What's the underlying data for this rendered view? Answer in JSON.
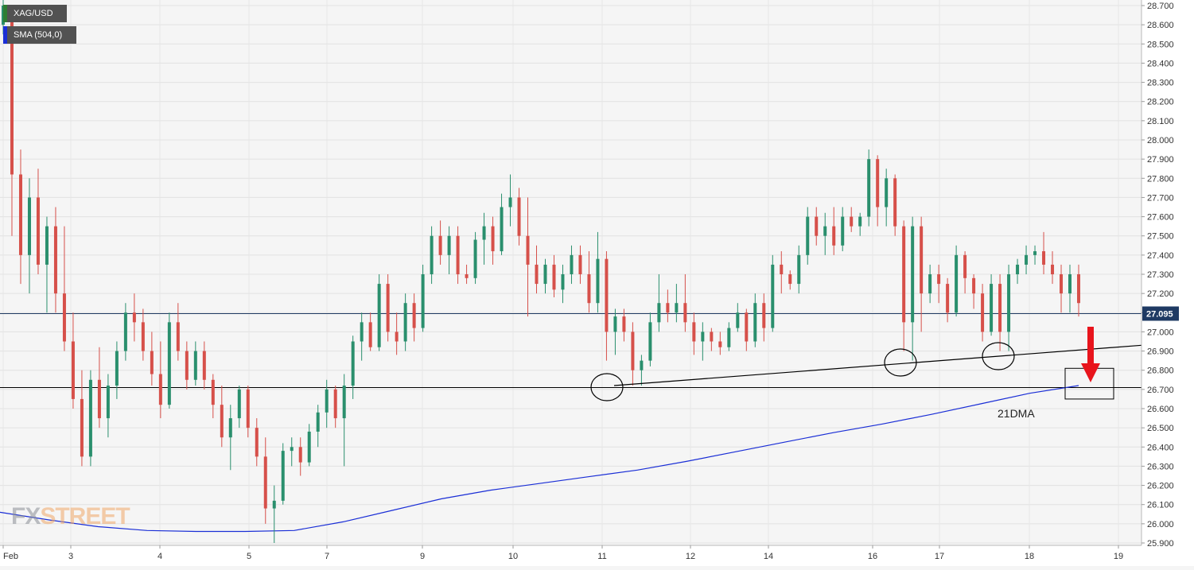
{
  "legend": {
    "symbol": "XAG/USD",
    "indicator": "SMA (504,0)",
    "symbol_color": "#2e7d32",
    "indicator_color": "#1a2ed6"
  },
  "watermark": {
    "fx": "FX",
    "street": "STREET"
  },
  "colors": {
    "up": "#2a8f6d",
    "down": "#d6504a",
    "sma": "#1a2ed6",
    "price_line": "#1f3a63",
    "annotation": "#000000",
    "arrow": "#e8141c"
  },
  "chart_data": {
    "type": "candlestick",
    "instrument": "XAG/USD",
    "y_range": [
      25.88,
      28.71
    ],
    "y_ticks": [
      "28.700",
      "28.600",
      "28.500",
      "28.400",
      "28.300",
      "28.200",
      "28.100",
      "28.000",
      "27.900",
      "27.800",
      "27.700",
      "27.600",
      "27.500",
      "27.400",
      "27.300",
      "27.200",
      "27.100",
      "27.000",
      "26.900",
      "26.800",
      "26.700",
      "26.600",
      "26.500",
      "26.400",
      "26.300",
      "26.200",
      "26.100",
      "26.000",
      "25.900"
    ],
    "x_labels": [
      "Feb",
      "3",
      "4",
      "5",
      "7",
      "9",
      "10",
      "11",
      "12",
      "14",
      "16",
      "17",
      "18",
      "19"
    ],
    "current_price": "27.095",
    "candles": [
      {
        "o": 28.6,
        "h": 28.74,
        "l": 28.55,
        "c": 28.7
      },
      {
        "o": 28.62,
        "h": 28.66,
        "l": 27.5,
        "c": 27.82
      },
      {
        "o": 27.82,
        "h": 27.95,
        "l": 27.25,
        "c": 27.4
      },
      {
        "o": 27.4,
        "h": 27.8,
        "l": 27.2,
        "c": 27.7
      },
      {
        "o": 27.7,
        "h": 27.85,
        "l": 27.3,
        "c": 27.35
      },
      {
        "o": 27.35,
        "h": 27.6,
        "l": 27.1,
        "c": 27.55
      },
      {
        "o": 27.55,
        "h": 27.65,
        "l": 27.1,
        "c": 27.2
      },
      {
        "o": 27.2,
        "h": 27.55,
        "l": 26.9,
        "c": 26.95
      },
      {
        "o": 26.95,
        "h": 27.1,
        "l": 26.6,
        "c": 26.65
      },
      {
        "o": 26.65,
        "h": 26.8,
        "l": 26.3,
        "c": 26.35
      },
      {
        "o": 26.35,
        "h": 26.8,
        "l": 26.3,
        "c": 26.75
      },
      {
        "o": 26.75,
        "h": 26.92,
        "l": 26.5,
        "c": 26.55
      },
      {
        "o": 26.55,
        "h": 26.78,
        "l": 26.45,
        "c": 26.72
      },
      {
        "o": 26.72,
        "h": 26.95,
        "l": 26.65,
        "c": 26.9
      },
      {
        "o": 26.9,
        "h": 27.15,
        "l": 26.85,
        "c": 27.1
      },
      {
        "o": 27.1,
        "h": 27.2,
        "l": 26.95,
        "c": 27.05
      },
      {
        "o": 27.05,
        "h": 27.12,
        "l": 26.85,
        "c": 26.9
      },
      {
        "o": 26.9,
        "h": 27.0,
        "l": 26.72,
        "c": 26.78
      },
      {
        "o": 26.78,
        "h": 26.95,
        "l": 26.55,
        "c": 26.62
      },
      {
        "o": 26.62,
        "h": 27.1,
        "l": 26.6,
        "c": 27.05
      },
      {
        "o": 27.05,
        "h": 27.15,
        "l": 26.85,
        "c": 26.9
      },
      {
        "o": 26.9,
        "h": 26.95,
        "l": 26.7,
        "c": 26.75
      },
      {
        "o": 26.75,
        "h": 26.95,
        "l": 26.72,
        "c": 26.9
      },
      {
        "o": 26.9,
        "h": 26.95,
        "l": 26.7,
        "c": 26.75
      },
      {
        "o": 26.75,
        "h": 26.78,
        "l": 26.55,
        "c": 26.62
      },
      {
        "o": 26.62,
        "h": 26.72,
        "l": 26.4,
        "c": 26.45
      },
      {
        "o": 26.45,
        "h": 26.62,
        "l": 26.28,
        "c": 26.55
      },
      {
        "o": 26.55,
        "h": 26.72,
        "l": 26.5,
        "c": 26.7
      },
      {
        "o": 26.7,
        "h": 26.72,
        "l": 26.45,
        "c": 26.5
      },
      {
        "o": 26.5,
        "h": 26.55,
        "l": 26.3,
        "c": 26.35
      },
      {
        "o": 26.35,
        "h": 26.45,
        "l": 26.0,
        "c": 26.08
      },
      {
        "o": 26.08,
        "h": 26.2,
        "l": 25.9,
        "c": 26.12
      },
      {
        "o": 26.12,
        "h": 26.42,
        "l": 26.1,
        "c": 26.38
      },
      {
        "o": 26.38,
        "h": 26.45,
        "l": 26.3,
        "c": 26.4
      },
      {
        "o": 26.4,
        "h": 26.45,
        "l": 26.25,
        "c": 26.32
      },
      {
        "o": 26.32,
        "h": 26.52,
        "l": 26.3,
        "c": 26.48
      },
      {
        "o": 26.48,
        "h": 26.62,
        "l": 26.4,
        "c": 26.58
      },
      {
        "o": 26.58,
        "h": 26.75,
        "l": 26.5,
        "c": 26.7
      },
      {
        "o": 26.7,
        "h": 26.72,
        "l": 26.5,
        "c": 26.55
      },
      {
        "o": 26.55,
        "h": 26.78,
        "l": 26.3,
        "c": 26.72
      },
      {
        "o": 26.72,
        "h": 26.98,
        "l": 26.65,
        "c": 26.95
      },
      {
        "o": 26.95,
        "h": 27.1,
        "l": 26.85,
        "c": 27.05
      },
      {
        "o": 27.05,
        "h": 27.1,
        "l": 26.9,
        "c": 26.92
      },
      {
        "o": 26.92,
        "h": 27.3,
        "l": 26.9,
        "c": 27.25
      },
      {
        "o": 27.25,
        "h": 27.3,
        "l": 26.95,
        "c": 27.0
      },
      {
        "o": 27.0,
        "h": 27.1,
        "l": 26.88,
        "c": 26.95
      },
      {
        "o": 26.95,
        "h": 27.2,
        "l": 26.9,
        "c": 27.15
      },
      {
        "o": 27.15,
        "h": 27.2,
        "l": 26.95,
        "c": 27.02
      },
      {
        "o": 27.02,
        "h": 27.35,
        "l": 27.0,
        "c": 27.3
      },
      {
        "o": 27.3,
        "h": 27.55,
        "l": 27.25,
        "c": 27.5
      },
      {
        "o": 27.5,
        "h": 27.58,
        "l": 27.35,
        "c": 27.4
      },
      {
        "o": 27.4,
        "h": 27.55,
        "l": 27.3,
        "c": 27.5
      },
      {
        "o": 27.5,
        "h": 27.55,
        "l": 27.25,
        "c": 27.3
      },
      {
        "o": 27.3,
        "h": 27.35,
        "l": 27.25,
        "c": 27.28
      },
      {
        "o": 27.28,
        "h": 27.52,
        "l": 27.25,
        "c": 27.48
      },
      {
        "o": 27.48,
        "h": 27.62,
        "l": 27.35,
        "c": 27.55
      },
      {
        "o": 27.55,
        "h": 27.6,
        "l": 27.35,
        "c": 27.42
      },
      {
        "o": 27.42,
        "h": 27.72,
        "l": 27.4,
        "c": 27.65
      },
      {
        "o": 27.65,
        "h": 27.82,
        "l": 27.55,
        "c": 27.7
      },
      {
        "o": 27.7,
        "h": 27.75,
        "l": 27.45,
        "c": 27.5
      },
      {
        "o": 27.5,
        "h": 27.7,
        "l": 27.08,
        "c": 27.35
      },
      {
        "o": 27.35,
        "h": 27.45,
        "l": 27.2,
        "c": 27.25
      },
      {
        "o": 27.25,
        "h": 27.38,
        "l": 27.2,
        "c": 27.35
      },
      {
        "o": 27.35,
        "h": 27.4,
        "l": 27.18,
        "c": 27.22
      },
      {
        "o": 27.22,
        "h": 27.35,
        "l": 27.15,
        "c": 27.3
      },
      {
        "o": 27.3,
        "h": 27.45,
        "l": 27.25,
        "c": 27.4
      },
      {
        "o": 27.4,
        "h": 27.45,
        "l": 27.25,
        "c": 27.3
      },
      {
        "o": 27.3,
        "h": 27.42,
        "l": 27.1,
        "c": 27.15
      },
      {
        "o": 27.15,
        "h": 27.52,
        "l": 27.1,
        "c": 27.38
      },
      {
        "o": 27.38,
        "h": 27.42,
        "l": 26.85,
        "c": 27.0
      },
      {
        "o": 27.0,
        "h": 27.12,
        "l": 26.88,
        "c": 27.08
      },
      {
        "o": 27.08,
        "h": 27.12,
        "l": 26.95,
        "c": 27.0
      },
      {
        "o": 27.0,
        "h": 27.05,
        "l": 26.72,
        "c": 26.8
      },
      {
        "o": 26.8,
        "h": 26.88,
        "l": 26.72,
        "c": 26.85
      },
      {
        "o": 26.85,
        "h": 27.1,
        "l": 26.82,
        "c": 27.05
      },
      {
        "o": 27.05,
        "h": 27.3,
        "l": 27.0,
        "c": 27.15
      },
      {
        "o": 27.15,
        "h": 27.22,
        "l": 27.05,
        "c": 27.1
      },
      {
        "o": 27.1,
        "h": 27.25,
        "l": 27.05,
        "c": 27.15
      },
      {
        "o": 27.15,
        "h": 27.3,
        "l": 27.0,
        "c": 27.05
      },
      {
        "o": 27.05,
        "h": 27.1,
        "l": 26.88,
        "c": 26.95
      },
      {
        "o": 26.95,
        "h": 27.05,
        "l": 26.85,
        "c": 27.0
      },
      {
        "o": 27.0,
        "h": 27.02,
        "l": 26.9,
        "c": 26.95
      },
      {
        "o": 26.95,
        "h": 27.0,
        "l": 26.88,
        "c": 26.92
      },
      {
        "o": 26.92,
        "h": 27.05,
        "l": 26.9,
        "c": 27.02
      },
      {
        "o": 27.02,
        "h": 27.15,
        "l": 27.0,
        "c": 27.1
      },
      {
        "o": 27.1,
        "h": 27.12,
        "l": 26.9,
        "c": 26.95
      },
      {
        "o": 26.95,
        "h": 27.2,
        "l": 26.92,
        "c": 27.15
      },
      {
        "o": 27.15,
        "h": 27.2,
        "l": 26.95,
        "c": 27.02
      },
      {
        "o": 27.02,
        "h": 27.4,
        "l": 27.0,
        "c": 27.35
      },
      {
        "o": 27.35,
        "h": 27.42,
        "l": 27.2,
        "c": 27.3
      },
      {
        "o": 27.3,
        "h": 27.32,
        "l": 27.22,
        "c": 27.25
      },
      {
        "o": 27.25,
        "h": 27.45,
        "l": 27.2,
        "c": 27.4
      },
      {
        "o": 27.4,
        "h": 27.65,
        "l": 27.35,
        "c": 27.6
      },
      {
        "o": 27.6,
        "h": 27.65,
        "l": 27.45,
        "c": 27.5
      },
      {
        "o": 27.5,
        "h": 27.62,
        "l": 27.4,
        "c": 27.55
      },
      {
        "o": 27.55,
        "h": 27.65,
        "l": 27.4,
        "c": 27.45
      },
      {
        "o": 27.45,
        "h": 27.65,
        "l": 27.42,
        "c": 27.6
      },
      {
        "o": 27.6,
        "h": 27.65,
        "l": 27.52,
        "c": 27.55
      },
      {
        "o": 27.55,
        "h": 27.62,
        "l": 27.5,
        "c": 27.6
      },
      {
        "o": 27.6,
        "h": 27.95,
        "l": 27.55,
        "c": 27.9
      },
      {
        "o": 27.9,
        "h": 27.92,
        "l": 27.55,
        "c": 27.65
      },
      {
        "o": 27.65,
        "h": 27.85,
        "l": 27.55,
        "c": 27.8
      },
      {
        "o": 27.8,
        "h": 27.82,
        "l": 27.5,
        "c": 27.55
      },
      {
        "o": 27.55,
        "h": 27.58,
        "l": 26.9,
        "c": 27.05
      },
      {
        "o": 27.05,
        "h": 27.6,
        "l": 26.85,
        "c": 27.55
      },
      {
        "o": 27.55,
        "h": 27.6,
        "l": 27.0,
        "c": 27.2
      },
      {
        "o": 27.2,
        "h": 27.35,
        "l": 27.15,
        "c": 27.3
      },
      {
        "o": 27.3,
        "h": 27.35,
        "l": 27.15,
        "c": 27.25
      },
      {
        "o": 27.25,
        "h": 27.28,
        "l": 27.05,
        "c": 27.1
      },
      {
        "o": 27.1,
        "h": 27.45,
        "l": 27.08,
        "c": 27.4
      },
      {
        "o": 27.4,
        "h": 27.42,
        "l": 27.2,
        "c": 27.28
      },
      {
        "o": 27.28,
        "h": 27.3,
        "l": 27.12,
        "c": 27.2
      },
      {
        "o": 27.2,
        "h": 27.25,
        "l": 26.95,
        "c": 27.0
      },
      {
        "o": 27.0,
        "h": 27.3,
        "l": 26.98,
        "c": 27.25
      },
      {
        "o": 27.25,
        "h": 27.3,
        "l": 26.9,
        "c": 27.0
      },
      {
        "o": 27.0,
        "h": 27.35,
        "l": 26.9,
        "c": 27.3
      },
      {
        "o": 27.3,
        "h": 27.38,
        "l": 27.25,
        "c": 27.35
      },
      {
        "o": 27.35,
        "h": 27.45,
        "l": 27.3,
        "c": 27.4
      },
      {
        "o": 27.4,
        "h": 27.45,
        "l": 27.35,
        "c": 27.42
      },
      {
        "o": 27.42,
        "h": 27.52,
        "l": 27.3,
        "c": 27.35
      },
      {
        "o": 27.35,
        "h": 27.42,
        "l": 27.25,
        "c": 27.3
      },
      {
        "o": 27.3,
        "h": 27.35,
        "l": 27.1,
        "c": 27.2
      },
      {
        "o": 27.2,
        "h": 27.35,
        "l": 27.1,
        "c": 27.3
      },
      {
        "o": 27.3,
        "h": 27.35,
        "l": 27.08,
        "c": 27.15
      }
    ],
    "sma_504": [
      26.06,
      26.02,
      25.985,
      25.965,
      25.96,
      25.96,
      25.965,
      26.01,
      26.07,
      26.13,
      26.175,
      26.21,
      26.245,
      26.28,
      26.325,
      26.375,
      26.425,
      26.475,
      26.52,
      26.57,
      26.625,
      26.68,
      26.72
    ],
    "horizontal_levels": [
      26.71
    ],
    "trendline": {
      "from": 26.72,
      "to": 26.93
    },
    "highlight_box": {
      "price_low": 26.65,
      "price_high": 26.81
    },
    "annotations": [
      "21DMA"
    ]
  }
}
